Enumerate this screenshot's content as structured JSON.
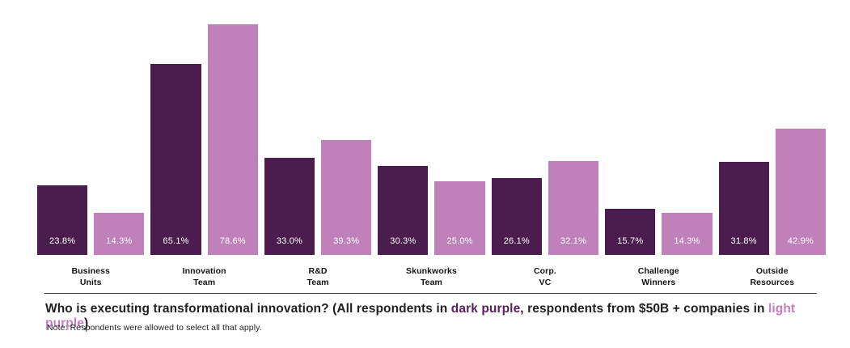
{
  "chart_data": {
    "type": "bar",
    "title": "Who is executing transformational innovation? (All respondents in dark purple, respondents from $50B + companies in light purple)",
    "categories": [
      "Business Units",
      "Innovation Team",
      "R&D Team",
      "Skunkworks Team",
      "Corp. VC",
      "Challenge Winners",
      "Outside Resources"
    ],
    "category_lines": [
      [
        "Business",
        "Units"
      ],
      [
        "Innovation",
        "Team"
      ],
      [
        "R&D",
        "Team"
      ],
      [
        "Skunkworks",
        "Team"
      ],
      [
        "Corp.",
        "VC"
      ],
      [
        "Challenge",
        "Winners"
      ],
      [
        "Outside",
        "Resources"
      ]
    ],
    "series": [
      {
        "name": "All respondents",
        "color": "#4b1d4e",
        "values": [
          23.8,
          65.1,
          33.0,
          30.3,
          26.1,
          15.7,
          31.8
        ],
        "labels": [
          "23.8%",
          "65.1%",
          "33.0%",
          "30.3%",
          "26.1%",
          "15.7%",
          "31.8%"
        ]
      },
      {
        "name": "Respondents from $50B + companies",
        "color": "#c080ba",
        "values": [
          14.3,
          78.6,
          39.3,
          25.0,
          32.1,
          14.3,
          42.9
        ],
        "labels": [
          "14.3%",
          "78.6%",
          "39.3%",
          "25.0%",
          "32.1%",
          "14.3%",
          "42.9%"
        ]
      }
    ],
    "ylim": [
      0,
      80
    ],
    "grid": false,
    "legend_position": "in-caption",
    "value_label_color": "#ffffff",
    "xlabel": "",
    "ylabel": ""
  },
  "caption": {
    "parts": [
      {
        "text": "Who is executing transformational innovation? (All respondents in ",
        "color": "#231f20"
      },
      {
        "text": "dark purple",
        "color": "#5b1f5e"
      },
      {
        "text": ", respondents from $50B + companies in ",
        "color": "#231f20"
      },
      {
        "text": "light purple",
        "color": "#c57fc1"
      },
      {
        "text": ")",
        "color": "#231f20"
      }
    ]
  },
  "note": "Note: Respondents were allowed to select all that apply."
}
